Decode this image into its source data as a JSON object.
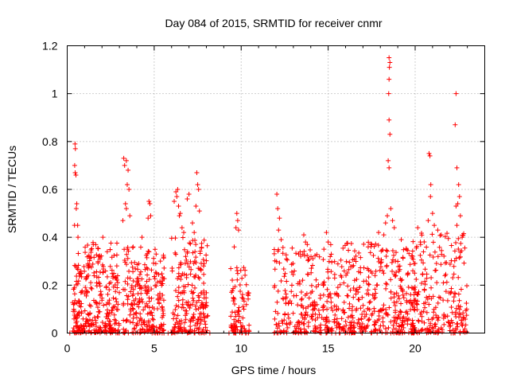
{
  "chart_data": {
    "type": "scatter",
    "title": "Day 084 of 2015, SRMTID for receiver cnmr",
    "xlabel": "GPS time / hours",
    "ylabel": "SRMTID / TECUs",
    "xlim": [
      0,
      24
    ],
    "ylim": [
      0,
      1.2
    ],
    "x_ticks": [
      0,
      5,
      10,
      15,
      20
    ],
    "x_tick_labels": [
      "0",
      "5",
      "10",
      "15",
      "20"
    ],
    "y_ticks": [
      0,
      0.2,
      0.4,
      0.6,
      0.8,
      1,
      1.2
    ],
    "y_tick_labels": [
      "0",
      "0.2",
      "0.4",
      "0.6",
      "0.8",
      "1",
      "1.2"
    ],
    "grid": true,
    "marker": "+",
    "color": "#ff0000",
    "seed": 84,
    "clusters": [
      {
        "x_start": 0.3,
        "x_end": 1.0,
        "count": 90,
        "max": 0.34
      },
      {
        "x_start": 1.0,
        "x_end": 3.0,
        "count": 230,
        "max": 0.38
      },
      {
        "x_start": 3.2,
        "x_end": 5.6,
        "count": 250,
        "max": 0.36
      },
      {
        "x_start": 6.0,
        "x_end": 8.1,
        "count": 220,
        "max": 0.4
      },
      {
        "x_start": 9.4,
        "x_end": 10.5,
        "count": 90,
        "max": 0.28
      },
      {
        "x_start": 11.9,
        "x_end": 15.0,
        "count": 230,
        "max": 0.36
      },
      {
        "x_start": 15.0,
        "x_end": 18.2,
        "count": 260,
        "max": 0.38
      },
      {
        "x_start": 18.3,
        "x_end": 20.0,
        "count": 150,
        "max": 0.36
      },
      {
        "x_start": 19.8,
        "x_end": 23.0,
        "count": 250,
        "max": 0.42
      }
    ],
    "points": [
      [
        0.45,
        0.79
      ],
      [
        0.47,
        0.77
      ],
      [
        0.43,
        0.7
      ],
      [
        0.46,
        0.67
      ],
      [
        0.5,
        0.66
      ],
      [
        0.55,
        0.54
      ],
      [
        0.52,
        0.52
      ],
      [
        0.42,
        0.45
      ],
      [
        0.6,
        0.45
      ],
      [
        0.62,
        0.4
      ],
      [
        1.5,
        0.37
      ],
      [
        2.05,
        0.4
      ],
      [
        2.3,
        0.34
      ],
      [
        3.25,
        0.73
      ],
      [
        3.4,
        0.72
      ],
      [
        3.3,
        0.7
      ],
      [
        3.5,
        0.68
      ],
      [
        3.45,
        0.62
      ],
      [
        3.55,
        0.6
      ],
      [
        3.35,
        0.54
      ],
      [
        3.4,
        0.52
      ],
      [
        3.2,
        0.47
      ],
      [
        3.6,
        0.49
      ],
      [
        4.7,
        0.55
      ],
      [
        4.75,
        0.54
      ],
      [
        4.8,
        0.49
      ],
      [
        4.65,
        0.48
      ],
      [
        4.3,
        0.4
      ],
      [
        6.15,
        0.55
      ],
      [
        6.25,
        0.59
      ],
      [
        6.3,
        0.57
      ],
      [
        6.35,
        0.6
      ],
      [
        6.4,
        0.53
      ],
      [
        6.5,
        0.5
      ],
      [
        6.6,
        0.44
      ],
      [
        6.7,
        0.42
      ],
      [
        6.45,
        0.49
      ],
      [
        6.9,
        0.56
      ],
      [
        7.0,
        0.58
      ],
      [
        7.2,
        0.46
      ],
      [
        7.45,
        0.67
      ],
      [
        7.5,
        0.62
      ],
      [
        7.55,
        0.6
      ],
      [
        7.4,
        0.53
      ],
      [
        7.6,
        0.51
      ],
      [
        7.3,
        0.42
      ],
      [
        9.75,
        0.5
      ],
      [
        9.8,
        0.47
      ],
      [
        9.7,
        0.44
      ],
      [
        9.85,
        0.43
      ],
      [
        9.6,
        0.36
      ],
      [
        12.05,
        0.58
      ],
      [
        12.1,
        0.52
      ],
      [
        12.2,
        0.48
      ],
      [
        12.15,
        0.43
      ],
      [
        12.3,
        0.39
      ],
      [
        13.6,
        0.41
      ],
      [
        13.7,
        0.38
      ],
      [
        13.8,
        0.37
      ],
      [
        14.9,
        0.42
      ],
      [
        15.0,
        0.38
      ],
      [
        17.3,
        0.36
      ],
      [
        17.5,
        0.37
      ],
      [
        17.9,
        0.42
      ],
      [
        18.2,
        0.41
      ],
      [
        18.5,
        1.15
      ],
      [
        18.55,
        1.13
      ],
      [
        18.52,
        1.11
      ],
      [
        18.5,
        1.06
      ],
      [
        18.48,
        1.0
      ],
      [
        18.5,
        0.89
      ],
      [
        18.55,
        0.83
      ],
      [
        18.45,
        0.72
      ],
      [
        18.5,
        0.69
      ],
      [
        18.6,
        0.52
      ],
      [
        18.4,
        0.49
      ],
      [
        18.7,
        0.47
      ],
      [
        18.8,
        0.44
      ],
      [
        18.3,
        0.46
      ],
      [
        19.2,
        0.39
      ],
      [
        19.5,
        0.35
      ],
      [
        20.15,
        0.44
      ],
      [
        20.3,
        0.38
      ],
      [
        20.8,
        0.75
      ],
      [
        20.85,
        0.74
      ],
      [
        20.9,
        0.62
      ],
      [
        20.88,
        0.57
      ],
      [
        20.75,
        0.47
      ],
      [
        21.0,
        0.5
      ],
      [
        21.1,
        0.45
      ],
      [
        21.3,
        0.43
      ],
      [
        21.5,
        0.41
      ],
      [
        22.35,
        1.0
      ],
      [
        22.3,
        0.87
      ],
      [
        22.4,
        0.69
      ],
      [
        22.5,
        0.62
      ],
      [
        22.55,
        0.57
      ],
      [
        22.45,
        0.54
      ],
      [
        22.35,
        0.53
      ],
      [
        22.6,
        0.49
      ],
      [
        22.4,
        0.45
      ],
      [
        22.7,
        0.4
      ],
      [
        0.15,
        0.0
      ],
      [
        0.45,
        0.0
      ],
      [
        2.5,
        0.0
      ],
      [
        3.3,
        0.0
      ],
      [
        5.8,
        0.0
      ],
      [
        6.0,
        0.0
      ],
      [
        8.2,
        0.0
      ],
      [
        9.3,
        0.0
      ],
      [
        11.9,
        0.0
      ],
      [
        15.2,
        0.0
      ],
      [
        18.6,
        0.0
      ],
      [
        19.8,
        0.0
      ],
      [
        21.3,
        0.0
      ]
    ]
  }
}
